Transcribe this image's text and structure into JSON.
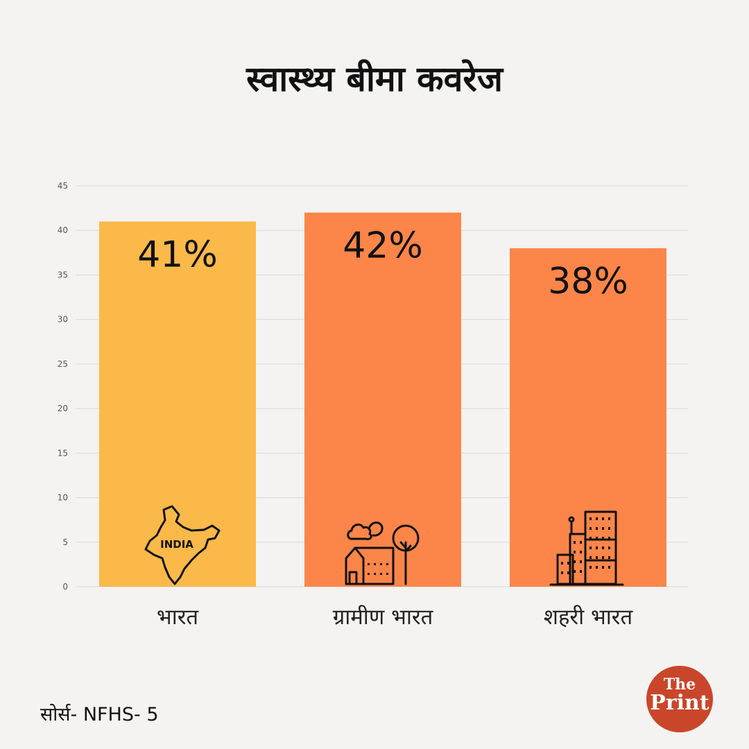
{
  "chart_data": {
    "type": "bar",
    "title": "स्वास्थ्य बीमा कवरेज",
    "categories": [
      "भारत",
      "ग्रामीण भारत",
      "शहरी भारत"
    ],
    "values": [
      41,
      42,
      38
    ],
    "data_labels": [
      "41%",
      "42%",
      "38%"
    ],
    "bar_colors": [
      "#fbb94a",
      "#fc8549",
      "#fc8549"
    ],
    "icons": [
      "india-map-icon",
      "village-house-tree-icon",
      "city-buildings-icon"
    ],
    "icon_map_text": "INDIA",
    "ylim": [
      0,
      45
    ],
    "yticks": [
      0,
      5,
      10,
      15,
      20,
      25,
      30,
      35,
      40,
      45
    ],
    "grid": true,
    "legend": "none"
  },
  "source": "सोर्स- NFHS- 5",
  "brand": {
    "the": "The",
    "print": "Print",
    "color": "#c9462a"
  },
  "colors": {
    "background": "#f4f3f1",
    "grid": "#d9d9d9",
    "text": "#111111"
  }
}
